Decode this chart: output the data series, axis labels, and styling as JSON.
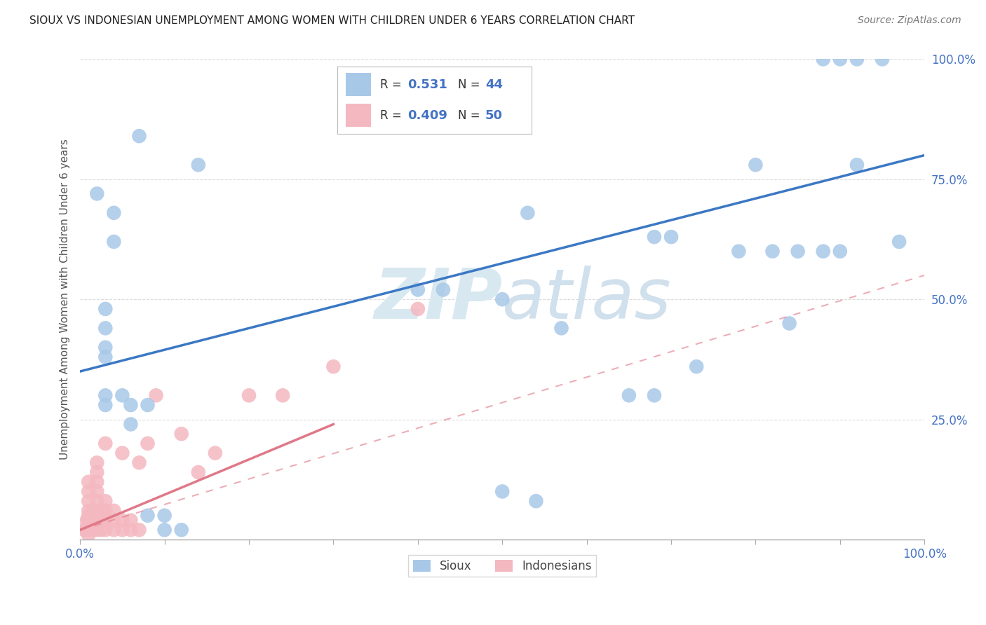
{
  "title": "SIOUX VS INDONESIAN UNEMPLOYMENT AMONG WOMEN WITH CHILDREN UNDER 6 YEARS CORRELATION CHART",
  "source": "Source: ZipAtlas.com",
  "ylabel": "Unemployment Among Women with Children Under 6 years",
  "xlim": [
    0.0,
    1.0
  ],
  "ylim": [
    0.0,
    1.0
  ],
  "xticks": [
    0.0,
    0.1,
    0.2,
    0.3,
    0.4,
    0.5,
    0.6,
    0.7,
    0.8,
    0.9,
    1.0
  ],
  "yticks": [
    0.0,
    0.25,
    0.5,
    0.75,
    1.0
  ],
  "xticklabels": [
    "0.0%",
    "",
    "",
    "",
    "",
    "",
    "",
    "",
    "",
    "",
    "100.0%"
  ],
  "yticklabels": [
    "",
    "25.0%",
    "50.0%",
    "75.0%",
    "100.0%"
  ],
  "legend_r_sioux": "0.531",
  "legend_n_sioux": "44",
  "legend_r_indonesian": "0.409",
  "legend_n_indonesian": "50",
  "sioux_color": "#a8c8e8",
  "indonesian_color": "#f4b8c0",
  "sioux_line_color": "#3b78c4",
  "indonesian_line_color": "#e07888",
  "indonesian_dashed_color": "#e07888",
  "background_color": "#ffffff",
  "grid_color": "#cccccc",
  "sioux_line": {
    "x0": 0.0,
    "y0": 0.35,
    "x1": 1.0,
    "y1": 0.8
  },
  "indonesian_line_solid": {
    "x0": 0.0,
    "y0": 0.02,
    "x1": 0.3,
    "y1": 0.24
  },
  "indonesian_line_dashed": {
    "x0": 0.0,
    "y0": 0.02,
    "x1": 1.0,
    "y1": 0.55
  },
  "sioux_points": [
    [
      0.02,
      0.72
    ],
    [
      0.07,
      0.84
    ],
    [
      0.04,
      0.68
    ],
    [
      0.04,
      0.62
    ],
    [
      0.03,
      0.48
    ],
    [
      0.03,
      0.44
    ],
    [
      0.03,
      0.4
    ],
    [
      0.03,
      0.38
    ],
    [
      0.03,
      0.3
    ],
    [
      0.03,
      0.28
    ],
    [
      0.05,
      0.3
    ],
    [
      0.06,
      0.28
    ],
    [
      0.06,
      0.24
    ],
    [
      0.08,
      0.28
    ],
    [
      0.08,
      0.05
    ],
    [
      0.1,
      0.05
    ],
    [
      0.1,
      0.02
    ],
    [
      0.12,
      0.02
    ],
    [
      0.4,
      0.52
    ],
    [
      0.43,
      0.52
    ],
    [
      0.5,
      0.5
    ],
    [
      0.53,
      0.68
    ],
    [
      0.57,
      0.44
    ],
    [
      0.65,
      0.3
    ],
    [
      0.68,
      0.3
    ],
    [
      0.68,
      0.63
    ],
    [
      0.7,
      0.63
    ],
    [
      0.73,
      0.36
    ],
    [
      0.78,
      0.6
    ],
    [
      0.82,
      0.6
    ],
    [
      0.85,
      0.6
    ],
    [
      0.88,
      0.6
    ],
    [
      0.9,
      0.6
    ],
    [
      0.84,
      0.45
    ],
    [
      0.88,
      1.0
    ],
    [
      0.9,
      1.0
    ],
    [
      0.92,
      1.0
    ],
    [
      0.95,
      1.0
    ],
    [
      0.92,
      0.78
    ],
    [
      0.97,
      0.62
    ],
    [
      0.5,
      0.1
    ],
    [
      0.54,
      0.08
    ],
    [
      0.8,
      0.78
    ],
    [
      0.14,
      0.78
    ]
  ],
  "indonesian_points": [
    [
      0.005,
      0.02
    ],
    [
      0.008,
      0.02
    ],
    [
      0.008,
      0.04
    ],
    [
      0.01,
      0.01
    ],
    [
      0.01,
      0.02
    ],
    [
      0.01,
      0.03
    ],
    [
      0.01,
      0.04
    ],
    [
      0.01,
      0.05
    ],
    [
      0.01,
      0.06
    ],
    [
      0.01,
      0.08
    ],
    [
      0.01,
      0.1
    ],
    [
      0.01,
      0.12
    ],
    [
      0.015,
      0.02
    ],
    [
      0.015,
      0.04
    ],
    [
      0.015,
      0.06
    ],
    [
      0.02,
      0.02
    ],
    [
      0.02,
      0.04
    ],
    [
      0.02,
      0.06
    ],
    [
      0.02,
      0.08
    ],
    [
      0.02,
      0.1
    ],
    [
      0.02,
      0.12
    ],
    [
      0.02,
      0.14
    ],
    [
      0.02,
      0.16
    ],
    [
      0.025,
      0.02
    ],
    [
      0.025,
      0.04
    ],
    [
      0.025,
      0.06
    ],
    [
      0.03,
      0.02
    ],
    [
      0.03,
      0.04
    ],
    [
      0.03,
      0.06
    ],
    [
      0.03,
      0.08
    ],
    [
      0.03,
      0.2
    ],
    [
      0.04,
      0.02
    ],
    [
      0.04,
      0.04
    ],
    [
      0.04,
      0.06
    ],
    [
      0.05,
      0.02
    ],
    [
      0.05,
      0.04
    ],
    [
      0.05,
      0.18
    ],
    [
      0.06,
      0.02
    ],
    [
      0.06,
      0.04
    ],
    [
      0.07,
      0.02
    ],
    [
      0.07,
      0.16
    ],
    [
      0.08,
      0.2
    ],
    [
      0.09,
      0.3
    ],
    [
      0.12,
      0.22
    ],
    [
      0.14,
      0.14
    ],
    [
      0.16,
      0.18
    ],
    [
      0.2,
      0.3
    ],
    [
      0.24,
      0.3
    ],
    [
      0.3,
      0.36
    ],
    [
      0.4,
      0.48
    ]
  ]
}
